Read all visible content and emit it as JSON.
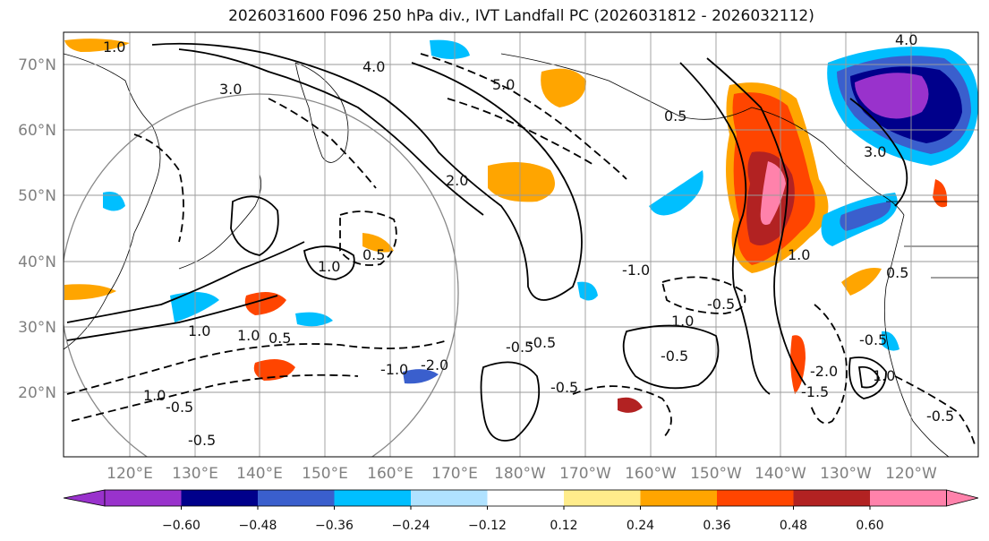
{
  "title": "2026031600 F096 250 hPa div., IVT Landfall PC (2026031812 - 2026032112)",
  "map": {
    "lat_labels": [
      "70°N",
      "60°N",
      "50°N",
      "40°N",
      "30°N",
      "20°N"
    ],
    "lon_labels": [
      "120°E",
      "130°E",
      "140°E",
      "150°E",
      "160°E",
      "170°E",
      "180°W",
      "170°W",
      "160°W",
      "150°W",
      "140°W",
      "130°W",
      "120°W"
    ],
    "contour_labels": [
      "1.0",
      "2.0",
      "3.0",
      "4.0",
      "5.0",
      "0.5",
      "-0.5",
      "-1.0",
      "-1.5",
      "-2.0"
    ]
  },
  "colorbar": {
    "colors": [
      "#9932cc",
      "#00008b",
      "#3a5fcd",
      "#00bfff",
      "#b0e2ff",
      "#ffffff",
      "#ffec8b",
      "#ffa500",
      "#ff4500",
      "#b22222",
      "#ff82ab"
    ],
    "tick_labels": [
      "−0.60",
      "−0.48",
      "−0.36",
      "−0.24",
      "−0.12",
      "0.12",
      "0.24",
      "0.36",
      "0.48",
      "0.60"
    ]
  }
}
